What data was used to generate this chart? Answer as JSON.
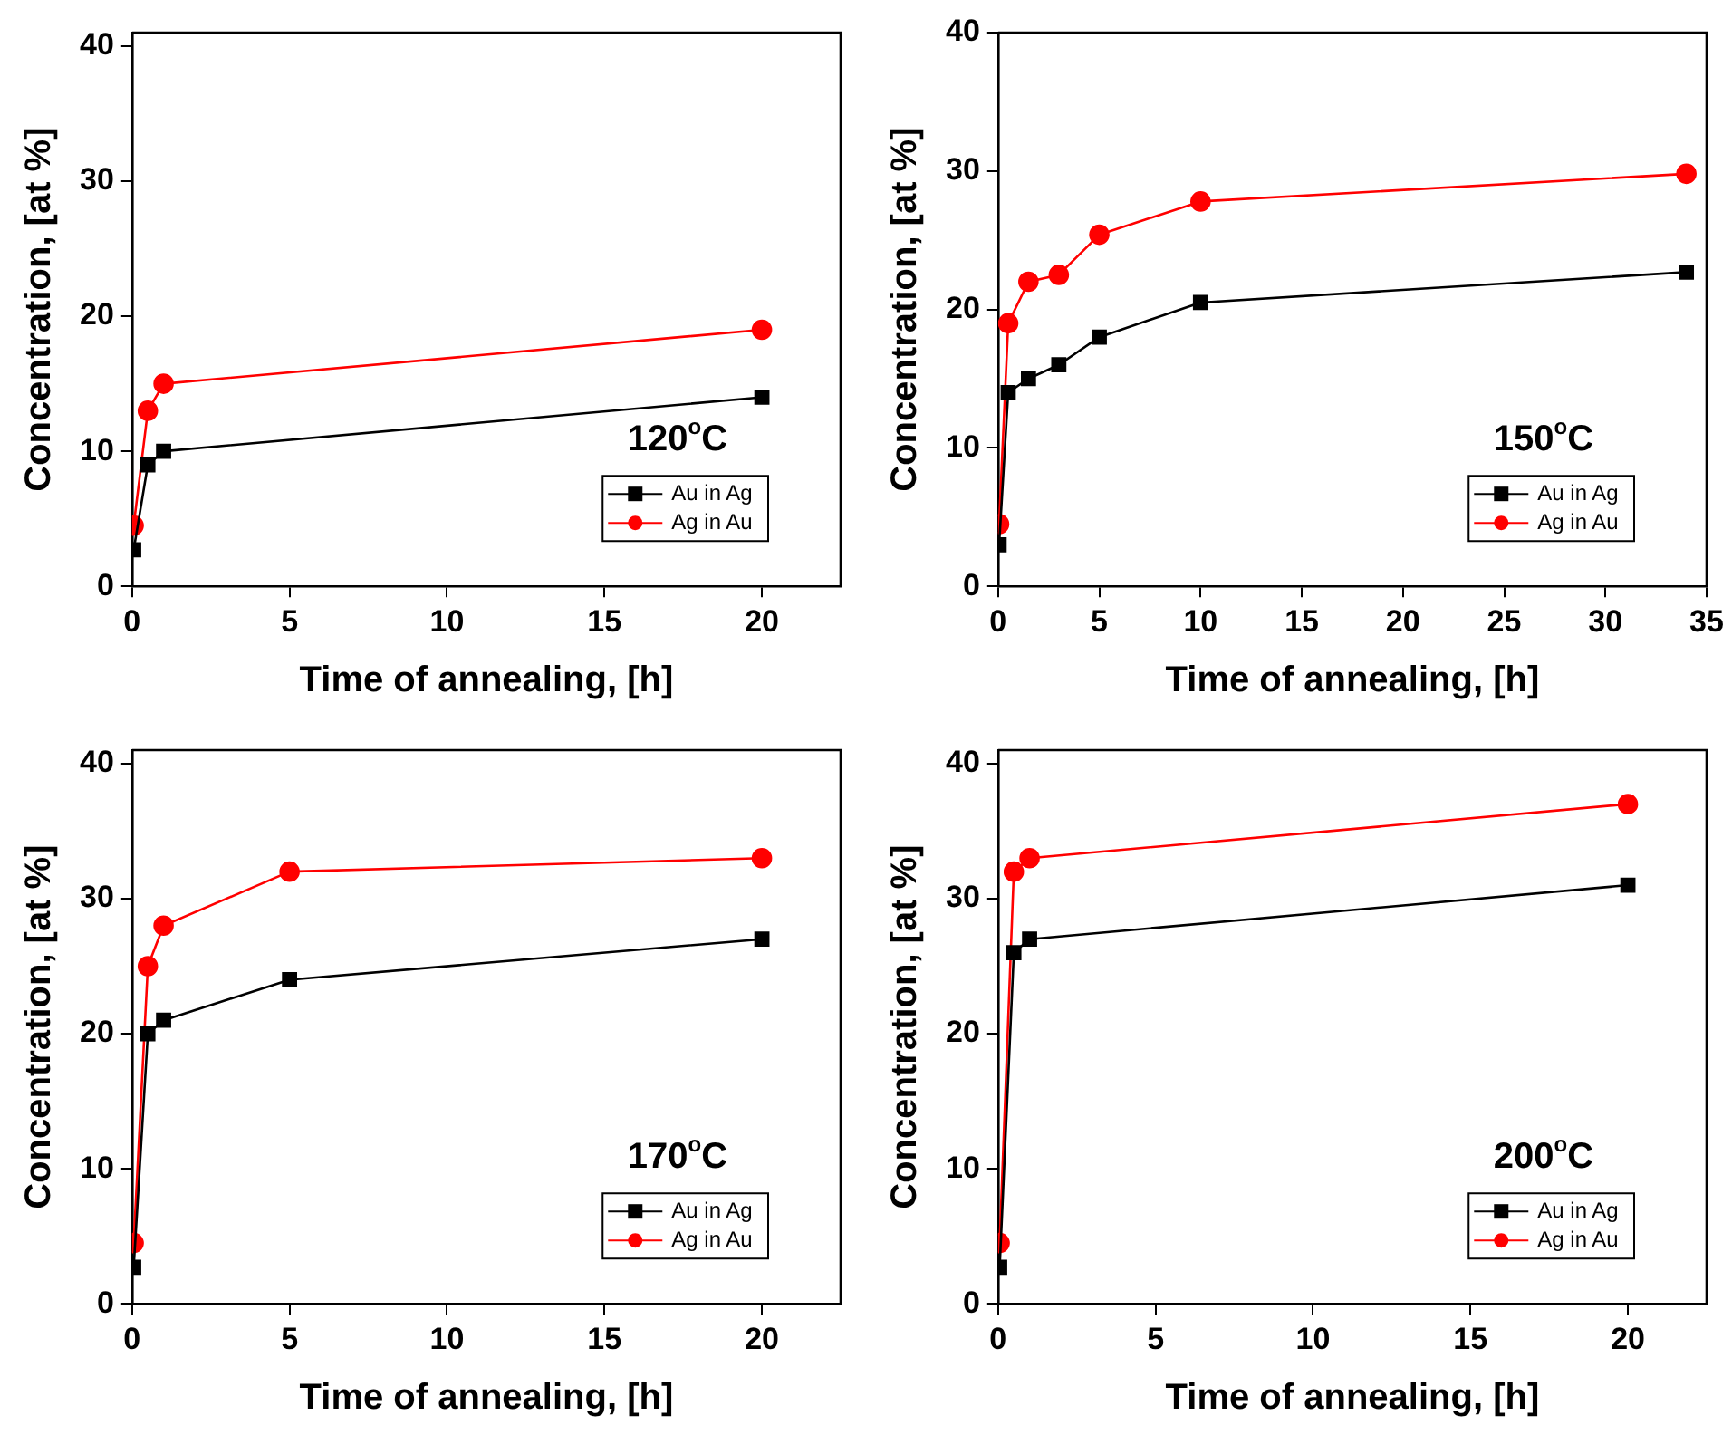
{
  "chart_data": [
    {
      "type": "line",
      "xlabel": "Time of annealing, [h]",
      "ylabel": "Concentration, [at %]",
      "annotations": [
        "120$^{o}$C"
      ],
      "xlim": [
        0,
        22.5
      ],
      "xticks": [
        0,
        5,
        10,
        15,
        20
      ],
      "ylim": [
        0,
        41
      ],
      "yticks": [
        0,
        10,
        20,
        30,
        40
      ],
      "legend": "bottom right",
      "series": [
        {
          "name": "Au in Ag",
          "color": "#000000",
          "marker": "square",
          "x": [
            0.05,
            0.5,
            1,
            20
          ],
          "values": [
            2.7,
            9,
            10,
            14
          ]
        },
        {
          "name": "Ag in Au",
          "color": "#ff0000",
          "marker": "circle",
          "x": [
            0.05,
            0.5,
            1,
            20
          ],
          "values": [
            4.5,
            13,
            15,
            19
          ]
        }
      ]
    },
    {
      "type": "line",
      "xlabel": "Time of annealing, [h]",
      "ylabel": "Concentration, [at %]",
      "annotations": [
        "150$^{o}$C"
      ],
      "xlim": [
        0,
        35
      ],
      "xticks": [
        0,
        5,
        10,
        15,
        20,
        25,
        30,
        35
      ],
      "ylim": [
        0,
        40
      ],
      "yticks": [
        0,
        10,
        20,
        30,
        40
      ],
      "legend": "bottom right",
      "series": [
        {
          "name": "Au in Ag",
          "color": "#000000",
          "marker": "square",
          "x": [
            0.05,
            0.5,
            1.5,
            3,
            5,
            10,
            34
          ],
          "values": [
            3,
            14,
            15,
            16,
            18,
            20.5,
            22.7
          ]
        },
        {
          "name": "Ag in Au",
          "color": "#ff0000",
          "marker": "circle",
          "x": [
            0.05,
            0.5,
            1.5,
            3,
            5,
            10,
            34
          ],
          "values": [
            4.5,
            19,
            22,
            22.5,
            25.4,
            27.8,
            29.8
          ]
        }
      ]
    },
    {
      "type": "line",
      "xlabel": "Time of annealing, [h]",
      "ylabel": "Concentration, [at %]",
      "annotations": [
        "170$^{o}$C"
      ],
      "xlim": [
        0,
        22.5
      ],
      "xticks": [
        0,
        5,
        10,
        15,
        20
      ],
      "ylim": [
        0,
        41
      ],
      "yticks": [
        0,
        10,
        20,
        30,
        40
      ],
      "legend": "bottom right",
      "series": [
        {
          "name": "Au in Ag",
          "color": "#000000",
          "marker": "square",
          "x": [
            0.05,
            0.5,
            1,
            5,
            20
          ],
          "values": [
            2.7,
            20,
            21,
            24,
            27
          ]
        },
        {
          "name": "Ag in Au",
          "color": "#ff0000",
          "marker": "circle",
          "x": [
            0.05,
            0.5,
            1,
            5,
            20
          ],
          "values": [
            4.5,
            25,
            28,
            32,
            33
          ]
        }
      ]
    },
    {
      "type": "line",
      "xlabel": "Time of annealing, [h]",
      "ylabel": "Concentration, [at %]",
      "annotations": [
        "200$^{o}$C"
      ],
      "xlim": [
        0,
        22.5
      ],
      "xticks": [
        0,
        5,
        10,
        15,
        20
      ],
      "ylim": [
        0,
        41
      ],
      "yticks": [
        0,
        10,
        20,
        30,
        40
      ],
      "legend": "bottom right",
      "series": [
        {
          "name": "Au in Ag",
          "color": "#000000",
          "marker": "square",
          "x": [
            0.05,
            0.5,
            1,
            20
          ],
          "values": [
            2.7,
            26,
            27,
            31
          ]
        },
        {
          "name": "Ag in Au",
          "color": "#ff0000",
          "marker": "circle",
          "x": [
            0.05,
            0.5,
            1,
            20
          ],
          "values": [
            4.5,
            32,
            33,
            37
          ]
        }
      ]
    }
  ]
}
